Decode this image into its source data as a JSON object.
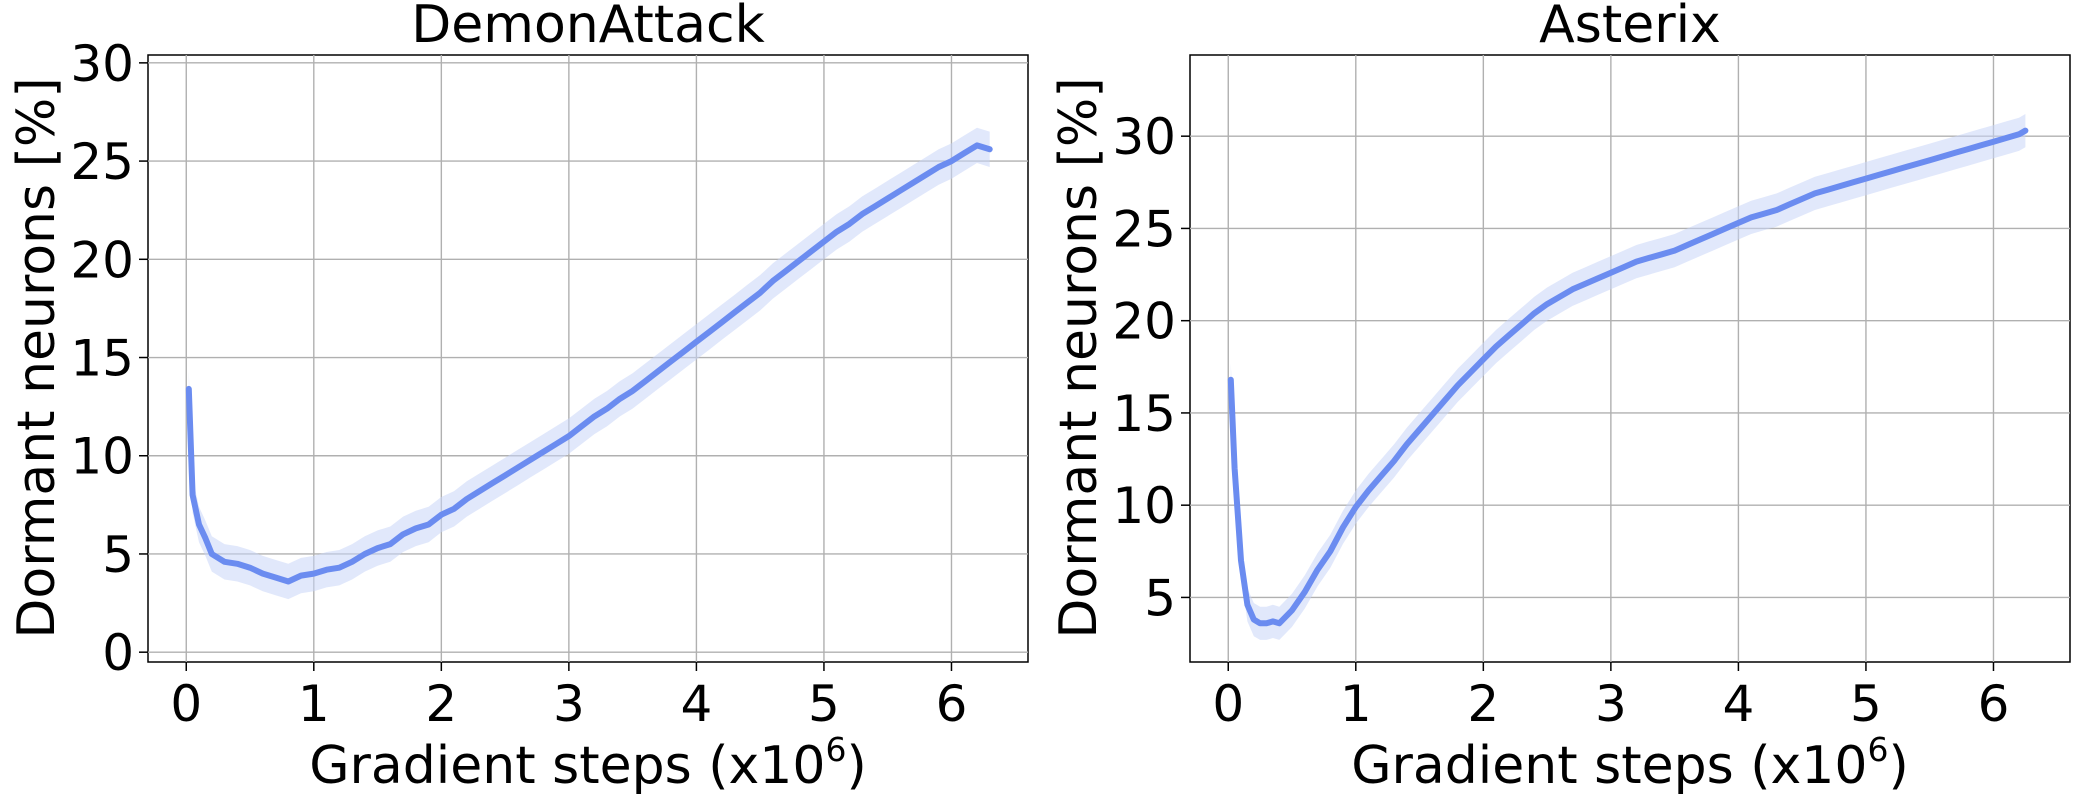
{
  "colors": {
    "line": "#6b8cf0",
    "band": "#c9d6f7",
    "grid": "#b0b0b0",
    "axis": "#000000"
  },
  "chart_data": [
    {
      "type": "line",
      "title": "DemonAttack",
      "xlabel_text": "Gradient steps (x10",
      "xlabel_exp": "6",
      "xlabel_close": ")",
      "ylabel": "Dormant neurons [%]",
      "xlim": [
        -0.3,
        6.6
      ],
      "ylim": [
        -0.5,
        30.4
      ],
      "xticks": [
        0,
        1,
        2,
        3,
        4,
        5,
        6
      ],
      "xtick_labels": [
        "0",
        "1",
        "2",
        "3",
        "4",
        "5",
        "6"
      ],
      "yticks": [
        0,
        5,
        10,
        15,
        20,
        25,
        30
      ],
      "ytick_labels": [
        "0",
        "5",
        "10",
        "15",
        "20",
        "25",
        "30"
      ],
      "grid": true,
      "series": [
        {
          "x": [
            0.02,
            0.05,
            0.1,
            0.15,
            0.2,
            0.3,
            0.4,
            0.5,
            0.6,
            0.7,
            0.8,
            0.9,
            1.0,
            1.1,
            1.2,
            1.3,
            1.4,
            1.5,
            1.6,
            1.7,
            1.8,
            1.9,
            2.0,
            2.1,
            2.2,
            2.3,
            2.4,
            2.5,
            2.6,
            2.7,
            2.8,
            2.9,
            3.0,
            3.1,
            3.2,
            3.3,
            3.4,
            3.5,
            3.6,
            3.7,
            3.8,
            3.9,
            4.0,
            4.1,
            4.2,
            4.3,
            4.4,
            4.5,
            4.6,
            4.7,
            4.8,
            4.9,
            5.0,
            5.1,
            5.2,
            5.3,
            5.4,
            5.5,
            5.6,
            5.7,
            5.8,
            5.9,
            6.0,
            6.1,
            6.2,
            6.3
          ],
          "y": [
            13.4,
            8.0,
            6.5,
            5.8,
            5.0,
            4.6,
            4.5,
            4.3,
            4.0,
            3.8,
            3.6,
            3.9,
            4.0,
            4.2,
            4.3,
            4.6,
            5.0,
            5.3,
            5.5,
            6.0,
            6.3,
            6.5,
            7.0,
            7.3,
            7.8,
            8.2,
            8.6,
            9.0,
            9.4,
            9.8,
            10.2,
            10.6,
            11.0,
            11.5,
            12.0,
            12.4,
            12.9,
            13.3,
            13.8,
            14.3,
            14.8,
            15.3,
            15.8,
            16.3,
            16.8,
            17.3,
            17.8,
            18.3,
            18.9,
            19.4,
            19.9,
            20.4,
            20.9,
            21.4,
            21.8,
            22.3,
            22.7,
            23.1,
            23.5,
            23.9,
            24.3,
            24.7,
            25.0,
            25.4,
            25.8,
            25.6
          ]
        }
      ]
    },
    {
      "type": "line",
      "title": "Asterix",
      "xlabel_text": "Gradient steps (x10",
      "xlabel_exp": "6",
      "xlabel_close": ")",
      "ylabel": "Dormant neurons [%]",
      "xlim": [
        -0.3,
        6.6
      ],
      "ylim": [
        1.5,
        34.4
      ],
      "xticks": [
        0,
        1,
        2,
        3,
        4,
        5,
        6
      ],
      "xtick_labels": [
        "0",
        "1",
        "2",
        "3",
        "4",
        "5",
        "6"
      ],
      "yticks": [
        5,
        10,
        15,
        20,
        25,
        30
      ],
      "ytick_labels": [
        "5",
        "10",
        "15",
        "20",
        "25",
        "30"
      ],
      "grid": true,
      "series": [
        {
          "x": [
            0.02,
            0.05,
            0.1,
            0.15,
            0.2,
            0.25,
            0.3,
            0.35,
            0.4,
            0.5,
            0.6,
            0.7,
            0.8,
            0.9,
            1.0,
            1.1,
            1.2,
            1.3,
            1.4,
            1.5,
            1.6,
            1.7,
            1.8,
            1.9,
            2.0,
            2.1,
            2.2,
            2.3,
            2.4,
            2.5,
            2.6,
            2.7,
            2.8,
            2.9,
            3.0,
            3.1,
            3.2,
            3.3,
            3.4,
            3.5,
            3.6,
            3.7,
            3.8,
            3.9,
            4.0,
            4.1,
            4.2,
            4.3,
            4.4,
            4.5,
            4.6,
            4.7,
            4.8,
            4.9,
            5.0,
            5.1,
            5.2,
            5.3,
            5.4,
            5.5,
            5.6,
            5.7,
            5.8,
            5.9,
            6.0,
            6.1,
            6.2,
            6.25
          ],
          "y": [
            16.8,
            12.0,
            7.0,
            4.6,
            3.8,
            3.6,
            3.6,
            3.7,
            3.6,
            4.3,
            5.3,
            6.5,
            7.5,
            8.8,
            9.9,
            10.8,
            11.6,
            12.4,
            13.3,
            14.1,
            14.9,
            15.7,
            16.5,
            17.2,
            17.9,
            18.6,
            19.2,
            19.8,
            20.4,
            20.9,
            21.3,
            21.7,
            22.0,
            22.3,
            22.6,
            22.9,
            23.2,
            23.4,
            23.6,
            23.8,
            24.1,
            24.4,
            24.7,
            25.0,
            25.3,
            25.6,
            25.8,
            26.0,
            26.3,
            26.6,
            26.9,
            27.1,
            27.3,
            27.5,
            27.7,
            27.9,
            28.1,
            28.3,
            28.5,
            28.7,
            28.9,
            29.1,
            29.3,
            29.5,
            29.7,
            29.9,
            30.1,
            30.3
          ]
        }
      ]
    }
  ]
}
